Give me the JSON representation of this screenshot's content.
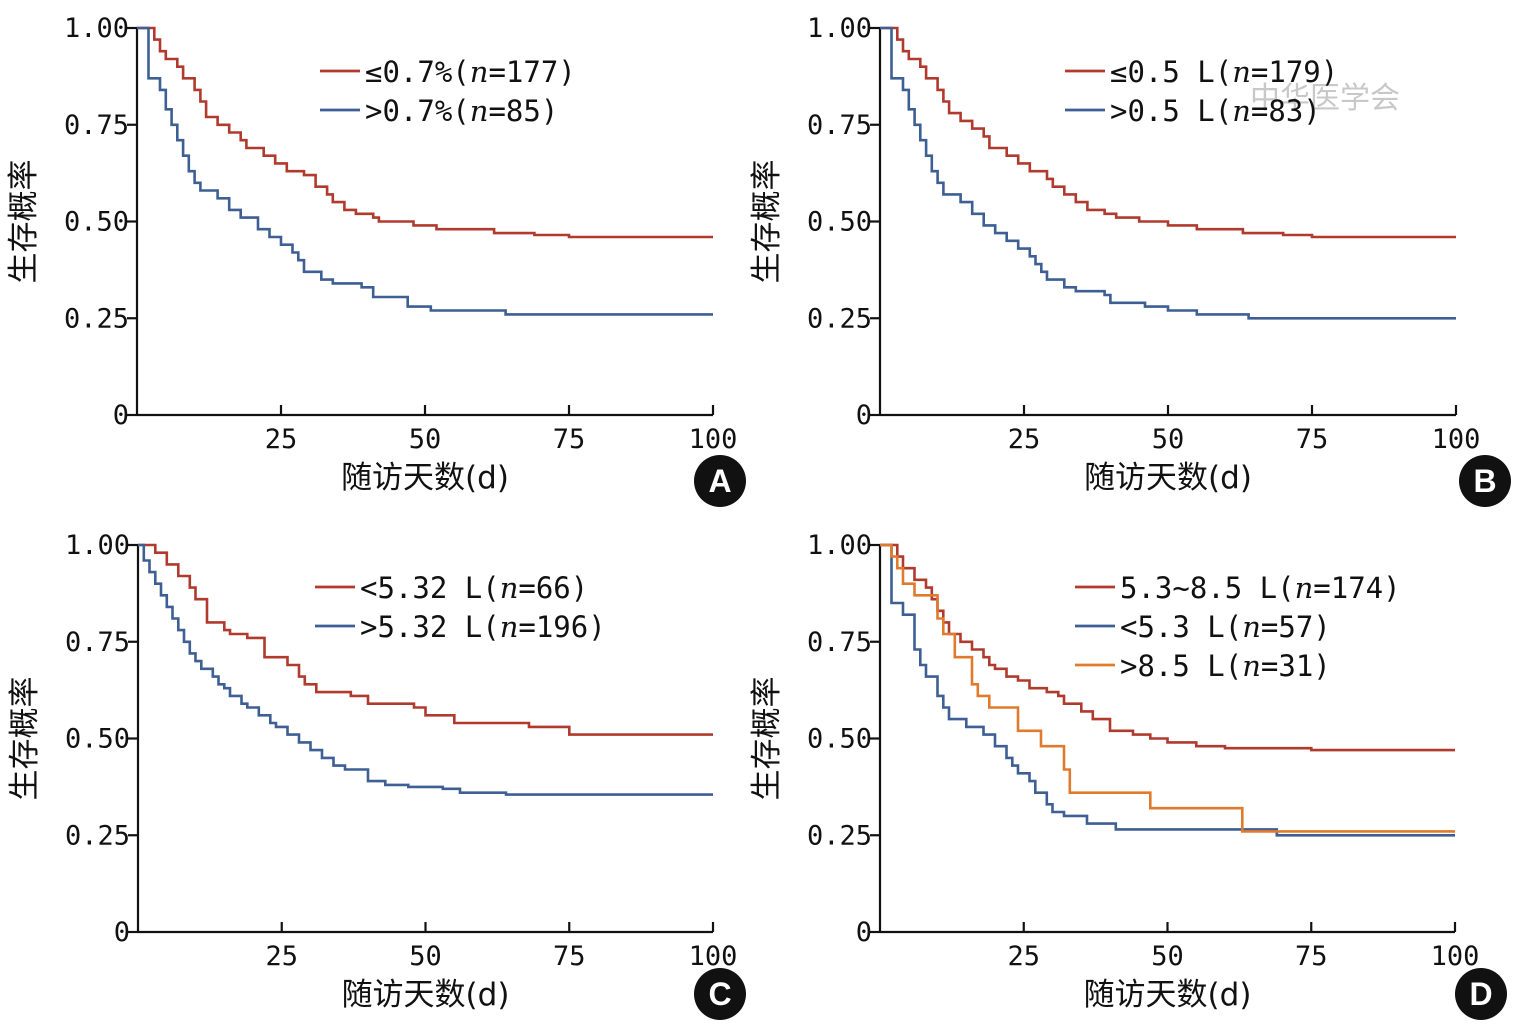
{
  "watermark": "中华医学会",
  "chart_data": [
    {
      "type": "line",
      "panel_label": "A",
      "xlabel": "随访天数(d)",
      "ylabel": "生存概率",
      "xlim": [
        0,
        100
      ],
      "ylim": [
        0,
        1
      ],
      "xticks": [
        "25",
        "50",
        "75",
        "100"
      ],
      "yticks": [
        "0",
        "0.25",
        "0.50",
        "0.75",
        "1.00"
      ],
      "series": [
        {
          "name": "≤0.7%(n=177)",
          "prefix": "≤0.7%(",
          "n_label": "n",
          "suffix": "=177)",
          "color": "#b03a2e",
          "points": [
            [
              0,
              1.0
            ],
            [
              3,
              0.97
            ],
            [
              4,
              0.94
            ],
            [
              5,
              0.92
            ],
            [
              7,
              0.9
            ],
            [
              8,
              0.87
            ],
            [
              10,
              0.84
            ],
            [
              11,
              0.81
            ],
            [
              12,
              0.77
            ],
            [
              14,
              0.75
            ],
            [
              16,
              0.73
            ],
            [
              18,
              0.71
            ],
            [
              19,
              0.69
            ],
            [
              22,
              0.67
            ],
            [
              24,
              0.65
            ],
            [
              26,
              0.63
            ],
            [
              29,
              0.62
            ],
            [
              31,
              0.59
            ],
            [
              33,
              0.57
            ],
            [
              34,
              0.55
            ],
            [
              36,
              0.53
            ],
            [
              38,
              0.52
            ],
            [
              41,
              0.51
            ],
            [
              42,
              0.5
            ],
            [
              48,
              0.49
            ],
            [
              52,
              0.48
            ],
            [
              62,
              0.47
            ],
            [
              69,
              0.465
            ],
            [
              75,
              0.46
            ],
            [
              100,
              0.46
            ]
          ]
        },
        {
          "name": ">0.7%(n=85)",
          "prefix": ">0.7%(",
          "n_label": "n",
          "suffix": "=85)",
          "color": "#3d5f94",
          "points": [
            [
              0,
              1.0
            ],
            [
              2,
              0.87
            ],
            [
              4,
              0.84
            ],
            [
              5,
              0.79
            ],
            [
              6,
              0.75
            ],
            [
              7,
              0.71
            ],
            [
              8,
              0.67
            ],
            [
              9,
              0.63
            ],
            [
              10,
              0.6
            ],
            [
              11,
              0.58
            ],
            [
              14,
              0.56
            ],
            [
              16,
              0.53
            ],
            [
              18,
              0.51
            ],
            [
              21,
              0.48
            ],
            [
              23,
              0.46
            ],
            [
              25,
              0.44
            ],
            [
              27,
              0.42
            ],
            [
              28,
              0.4
            ],
            [
              29,
              0.37
            ],
            [
              32,
              0.35
            ],
            [
              34,
              0.34
            ],
            [
              39,
              0.33
            ],
            [
              41,
              0.305
            ],
            [
              47,
              0.28
            ],
            [
              51,
              0.27
            ],
            [
              64,
              0.26
            ],
            [
              100,
              0.26
            ]
          ]
        }
      ]
    },
    {
      "type": "line",
      "panel_label": "B",
      "xlabel": "随访天数(d)",
      "ylabel": "生存概率",
      "xlim": [
        0,
        100
      ],
      "ylim": [
        0,
        1
      ],
      "xticks": [
        "25",
        "50",
        "75",
        "100"
      ],
      "yticks": [
        "0",
        "0.25",
        "0.50",
        "0.75",
        "1.00"
      ],
      "series": [
        {
          "name": "≤0.5 L(n=179)",
          "prefix": "≤0.5 L(",
          "n_label": "n",
          "suffix": "=179)",
          "color": "#b03a2e",
          "points": [
            [
              0,
              1.0
            ],
            [
              3,
              0.97
            ],
            [
              4,
              0.94
            ],
            [
              5,
              0.92
            ],
            [
              7,
              0.9
            ],
            [
              8,
              0.87
            ],
            [
              10,
              0.84
            ],
            [
              11,
              0.81
            ],
            [
              12,
              0.78
            ],
            [
              14,
              0.76
            ],
            [
              16,
              0.74
            ],
            [
              18,
              0.72
            ],
            [
              19,
              0.69
            ],
            [
              22,
              0.67
            ],
            [
              24,
              0.65
            ],
            [
              26,
              0.63
            ],
            [
              29,
              0.61
            ],
            [
              30,
              0.59
            ],
            [
              32,
              0.57
            ],
            [
              34,
              0.55
            ],
            [
              36,
              0.53
            ],
            [
              39,
              0.52
            ],
            [
              41,
              0.51
            ],
            [
              45,
              0.5
            ],
            [
              50,
              0.49
            ],
            [
              55,
              0.48
            ],
            [
              63,
              0.47
            ],
            [
              70,
              0.465
            ],
            [
              75,
              0.46
            ],
            [
              100,
              0.46
            ]
          ]
        },
        {
          "name": ">0.5 L(n=83)",
          "prefix": ">0.5 L(",
          "n_label": "n",
          "suffix": "=83)",
          "color": "#3d5f94",
          "points": [
            [
              0,
              1.0
            ],
            [
              2,
              0.87
            ],
            [
              4,
              0.84
            ],
            [
              5,
              0.79
            ],
            [
              6,
              0.75
            ],
            [
              7,
              0.71
            ],
            [
              8,
              0.67
            ],
            [
              9,
              0.63
            ],
            [
              10,
              0.6
            ],
            [
              11,
              0.57
            ],
            [
              14,
              0.55
            ],
            [
              16,
              0.52
            ],
            [
              18,
              0.49
            ],
            [
              20,
              0.47
            ],
            [
              22,
              0.45
            ],
            [
              24,
              0.43
            ],
            [
              26,
              0.41
            ],
            [
              27,
              0.39
            ],
            [
              28,
              0.37
            ],
            [
              29,
              0.35
            ],
            [
              32,
              0.33
            ],
            [
              34,
              0.32
            ],
            [
              39,
              0.31
            ],
            [
              40,
              0.29
            ],
            [
              46,
              0.28
            ],
            [
              50,
              0.27
            ],
            [
              55,
              0.26
            ],
            [
              64,
              0.25
            ],
            [
              100,
              0.25
            ]
          ]
        }
      ]
    },
    {
      "type": "line",
      "panel_label": "C",
      "xlabel": "随访天数(d)",
      "ylabel": "生存概率",
      "xlim": [
        0,
        100
      ],
      "ylim": [
        0,
        1
      ],
      "xticks": [
        "25",
        "50",
        "75",
        "100"
      ],
      "yticks": [
        "0",
        "0.25",
        "0.50",
        "0.75",
        "1.00"
      ],
      "series": [
        {
          "name": "<5.32 L(n=66)",
          "prefix": "<5.32 L(",
          "n_label": "n",
          "suffix": "=66)",
          "color": "#b03a2e",
          "points": [
            [
              0,
              1.0
            ],
            [
              3,
              0.98
            ],
            [
              5,
              0.95
            ],
            [
              7,
              0.92
            ],
            [
              9,
              0.89
            ],
            [
              10,
              0.86
            ],
            [
              12,
              0.8
            ],
            [
              15,
              0.78
            ],
            [
              16,
              0.77
            ],
            [
              19,
              0.76
            ],
            [
              22,
              0.71
            ],
            [
              26,
              0.69
            ],
            [
              28,
              0.66
            ],
            [
              29,
              0.64
            ],
            [
              31,
              0.62
            ],
            [
              37,
              0.61
            ],
            [
              40,
              0.59
            ],
            [
              48,
              0.58
            ],
            [
              50,
              0.56
            ],
            [
              55,
              0.54
            ],
            [
              68,
              0.53
            ],
            [
              75,
              0.51
            ],
            [
              100,
              0.51
            ]
          ]
        },
        {
          "name": ">5.32 L(n=196)",
          "prefix": ">5.32 L(",
          "n_label": "n",
          "suffix": "=196)",
          "color": "#3d5f94",
          "points": [
            [
              0,
              1.0
            ],
            [
              1,
              0.96
            ],
            [
              2,
              0.93
            ],
            [
              3,
              0.9
            ],
            [
              4,
              0.87
            ],
            [
              5,
              0.84
            ],
            [
              6,
              0.81
            ],
            [
              7,
              0.78
            ],
            [
              8,
              0.75
            ],
            [
              9,
              0.72
            ],
            [
              10,
              0.7
            ],
            [
              11,
              0.68
            ],
            [
              13,
              0.66
            ],
            [
              14,
              0.64
            ],
            [
              15,
              0.63
            ],
            [
              16,
              0.61
            ],
            [
              18,
              0.59
            ],
            [
              19,
              0.58
            ],
            [
              21,
              0.56
            ],
            [
              23,
              0.54
            ],
            [
              24,
              0.53
            ],
            [
              26,
              0.51
            ],
            [
              28,
              0.49
            ],
            [
              30,
              0.47
            ],
            [
              32,
              0.45
            ],
            [
              34,
              0.43
            ],
            [
              36,
              0.42
            ],
            [
              40,
              0.39
            ],
            [
              43,
              0.38
            ],
            [
              47,
              0.375
            ],
            [
              53,
              0.37
            ],
            [
              56,
              0.36
            ],
            [
              64,
              0.355
            ],
            [
              100,
              0.355
            ]
          ]
        }
      ]
    },
    {
      "type": "line",
      "panel_label": "D",
      "xlabel": "随访天数(d)",
      "ylabel": "生存概率",
      "xlim": [
        0,
        100
      ],
      "ylim": [
        0,
        1
      ],
      "xticks": [
        "25",
        "50",
        "75",
        "100"
      ],
      "yticks": [
        "0",
        "0.25",
        "0.50",
        "0.75",
        "1.00"
      ],
      "series": [
        {
          "name": "5.3~8.5 L(n=174)",
          "prefix": "5.3~8.5 L(",
          "n_label": "n",
          "suffix": "=174)",
          "color": "#b03a2e",
          "points": [
            [
              0,
              1.0
            ],
            [
              3,
              0.97
            ],
            [
              4,
              0.94
            ],
            [
              6,
              0.91
            ],
            [
              8,
              0.89
            ],
            [
              9,
              0.86
            ],
            [
              10,
              0.83
            ],
            [
              11,
              0.8
            ],
            [
              12,
              0.77
            ],
            [
              14,
              0.75
            ],
            [
              16,
              0.73
            ],
            [
              18,
              0.71
            ],
            [
              19,
              0.69
            ],
            [
              20,
              0.68
            ],
            [
              22,
              0.66
            ],
            [
              24,
              0.65
            ],
            [
              26,
              0.63
            ],
            [
              29,
              0.62
            ],
            [
              31,
              0.61
            ],
            [
              32,
              0.59
            ],
            [
              35,
              0.57
            ],
            [
              37,
              0.55
            ],
            [
              40,
              0.52
            ],
            [
              44,
              0.51
            ],
            [
              47,
              0.5
            ],
            [
              50,
              0.49
            ],
            [
              55,
              0.48
            ],
            [
              60,
              0.475
            ],
            [
              75,
              0.47
            ],
            [
              100,
              0.47
            ]
          ]
        },
        {
          "name": "<5.3 L(n=57)",
          "prefix": "<5.3 L(",
          "n_label": "n",
          "suffix": "=57)",
          "color": "#3d5f94",
          "points": [
            [
              0,
              1.0
            ],
            [
              2,
              0.85
            ],
            [
              4,
              0.82
            ],
            [
              6,
              0.73
            ],
            [
              7,
              0.69
            ],
            [
              8,
              0.66
            ],
            [
              10,
              0.61
            ],
            [
              11,
              0.58
            ],
            [
              12,
              0.55
            ],
            [
              15,
              0.53
            ],
            [
              18,
              0.51
            ],
            [
              20,
              0.48
            ],
            [
              22,
              0.45
            ],
            [
              23,
              0.43
            ],
            [
              24,
              0.41
            ],
            [
              26,
              0.39
            ],
            [
              27,
              0.36
            ],
            [
              29,
              0.33
            ],
            [
              30,
              0.31
            ],
            [
              32,
              0.3
            ],
            [
              36,
              0.28
            ],
            [
              41,
              0.265
            ],
            [
              69,
              0.25
            ],
            [
              100,
              0.25
            ]
          ]
        },
        {
          "name": ">8.5 L(n=31)",
          "prefix": ">8.5 L(",
          "n_label": "n",
          "suffix": "=31)",
          "color": "#e07b2e",
          "points": [
            [
              0,
              1.0
            ],
            [
              2,
              0.97
            ],
            [
              3,
              0.94
            ],
            [
              4,
              0.9
            ],
            [
              6,
              0.87
            ],
            [
              10,
              0.81
            ],
            [
              11,
              0.77
            ],
            [
              13,
              0.71
            ],
            [
              16,
              0.64
            ],
            [
              17,
              0.61
            ],
            [
              19,
              0.58
            ],
            [
              24,
              0.52
            ],
            [
              28,
              0.48
            ],
            [
              32,
              0.42
            ],
            [
              33,
              0.36
            ],
            [
              39,
              0.36
            ],
            [
              47,
              0.32
            ],
            [
              63,
              0.26
            ],
            [
              100,
              0.26
            ]
          ]
        }
      ]
    }
  ]
}
